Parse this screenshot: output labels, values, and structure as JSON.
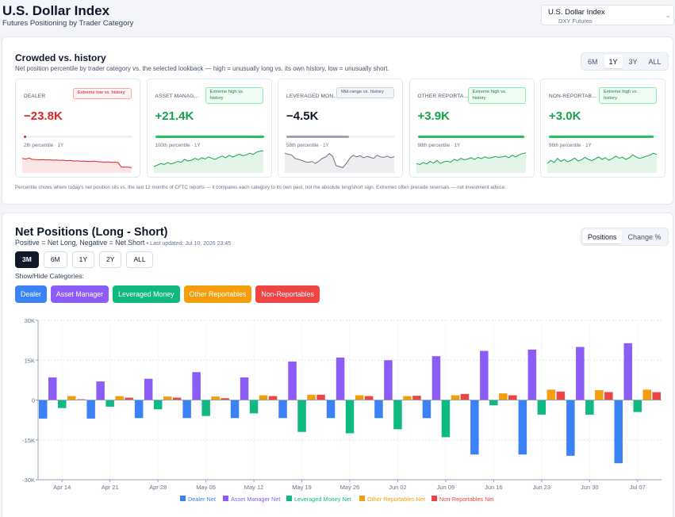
{
  "header": {
    "title": "U.S. Dollar Index",
    "subtitle": "Futures Positioning by Trader Category",
    "market_select": {
      "value": "U.S. Dollar Index",
      "sub": "DXY Futures"
    }
  },
  "crowded": {
    "title": "Crowded vs. history",
    "description": "Net position percentile by trader category vs. the selected lookback — high = unusually long vs. its own history, low = unusually short.",
    "lookbacks": [
      "6M",
      "1Y",
      "3Y",
      "ALL"
    ],
    "active_lookback": "1Y",
    "footnote": "Percentile shows where today's net position sits vs. the last 12 months of CFTC reports — it compares each category to its own past, not the absolute long/short sign. Extremes often precede reversals — not investment advice.",
    "cards": [
      {
        "name": "DEALER",
        "badge": "Extreme low vs. history",
        "badge_type": "low",
        "value": "−23.8K",
        "percentile": 2,
        "percentile_label": "2th percentile · 1Y",
        "color": "#dc2626",
        "spark": [
          0.55,
          0.52,
          0.56,
          0.5,
          0.49,
          0.48,
          0.49,
          0.47,
          0.48,
          0.46,
          0.47,
          0.45,
          0.46,
          0.44,
          0.45,
          0.42,
          0.43,
          0.41,
          0.42,
          0.4,
          0.4,
          0.41,
          0.39,
          0.38,
          0.37,
          0.38,
          0.36,
          0.36,
          0.35,
          0.12,
          0.13,
          0.12,
          0.1
        ]
      },
      {
        "name": "ASSET MANAG...",
        "badge": "Extreme high vs. history",
        "badge_type": "high",
        "value": "+21.4K",
        "percentile": 100,
        "percentile_label": "100th percentile · 1Y",
        "color": "#16a34a",
        "spark": [
          0.15,
          0.22,
          0.3,
          0.25,
          0.35,
          0.28,
          0.33,
          0.4,
          0.36,
          0.5,
          0.42,
          0.46,
          0.55,
          0.48,
          0.58,
          0.52,
          0.62,
          0.55,
          0.5,
          0.6,
          0.66,
          0.58,
          0.7,
          0.62,
          0.68,
          0.75,
          0.68,
          0.72,
          0.8,
          0.74,
          0.85,
          0.9,
          0.92
        ]
      },
      {
        "name": "LEVERAGED MON...",
        "badge": "Mid-range vs. history",
        "badge_type": "mid",
        "value": "−4.5K",
        "percentile": 58,
        "percentile_label": "58th percentile · 1Y",
        "color": "#6b7280",
        "spark": [
          0.8,
          0.75,
          0.72,
          0.55,
          0.5,
          0.45,
          0.38,
          0.36,
          0.4,
          0.3,
          0.42,
          0.55,
          0.62,
          0.78,
          0.65,
          0.2,
          0.15,
          0.1,
          0.3,
          0.55,
          0.7,
          0.62,
          0.68,
          0.58,
          0.65,
          0.6,
          0.55,
          0.7,
          0.62,
          0.6,
          0.66,
          0.58,
          0.64
        ]
      },
      {
        "name": "OTHER REPORTA...",
        "badge": "Extreme high vs. history",
        "badge_type": "high",
        "value": "+3.9K",
        "percentile": 98,
        "percentile_label": "98th percentile · 1Y",
        "color": "#16a34a",
        "spark": [
          0.3,
          0.25,
          0.35,
          0.28,
          0.4,
          0.32,
          0.45,
          0.3,
          0.38,
          0.42,
          0.36,
          0.5,
          0.44,
          0.55,
          0.48,
          0.52,
          0.58,
          0.5,
          0.6,
          0.54,
          0.62,
          0.56,
          0.58,
          0.64,
          0.6,
          0.62,
          0.66,
          0.58,
          0.7,
          0.62,
          0.72,
          0.78,
          0.82
        ]
      },
      {
        "name": "NON-REPORTAB...",
        "badge": "Extreme high vs. history",
        "badge_type": "high",
        "value": "+3.0K",
        "percentile": 96,
        "percentile_label": "96th percentile · 1Y",
        "color": "#16a34a",
        "spark": [
          0.3,
          0.45,
          0.35,
          0.55,
          0.4,
          0.5,
          0.38,
          0.46,
          0.56,
          0.42,
          0.48,
          0.6,
          0.5,
          0.44,
          0.52,
          0.62,
          0.5,
          0.58,
          0.46,
          0.54,
          0.66,
          0.56,
          0.6,
          0.5,
          0.58,
          0.72,
          0.62,
          0.55,
          0.6,
          0.66,
          0.7,
          0.8,
          0.74
        ]
      }
    ]
  },
  "net_positions": {
    "title": "Net Positions (Long - Short)",
    "subtitle": "Positive = Net Long, Negative = Net Short",
    "last_updated": "• Last updated: Jul 10, 2026 23:45",
    "view_tabs": [
      "Positions",
      "Change %"
    ],
    "active_view": "Positions",
    "ranges": [
      "3M",
      "6M",
      "1Y",
      "2Y",
      "ALL"
    ],
    "active_range": "3M",
    "show_hide_label": "Show/Hide Categories:",
    "categories": [
      {
        "label": "Dealer",
        "color": "#3b82f6"
      },
      {
        "label": "Asset Manager",
        "color": "#8b5cf6"
      },
      {
        "label": "Leveraged Money",
        "color": "#10b981"
      },
      {
        "label": "Other Reportables",
        "color": "#f59e0b"
      },
      {
        "label": "Non-Reportables",
        "color": "#ef4444"
      }
    ]
  },
  "chart_data": {
    "type": "bar",
    "title": "",
    "xlabel": "",
    "ylabel": "",
    "ylim": [
      -30000,
      30000
    ],
    "yticks": [
      30000,
      15000,
      0,
      -15000,
      -30000
    ],
    "ytick_labels": [
      "30K",
      "15K",
      "0",
      "-15K",
      "-30K"
    ],
    "categories": [
      "Apr 14",
      "Apr 21",
      "Apr 28",
      "May 05",
      "May 12",
      "May 19",
      "May 26",
      "Jun 02",
      "Jun 09",
      "Jun 16",
      "Jun 23",
      "Jun 30",
      "Jul 07"
    ],
    "grid": true,
    "legend_position": "bottom",
    "series": [
      {
        "name": "Dealer Net",
        "color": "#3b82f6",
        "values": [
          -7000,
          -7000,
          -6800,
          -6800,
          -6800,
          -6800,
          -6800,
          -6800,
          -6800,
          -20500,
          -20500,
          -21000,
          -23800
        ]
      },
      {
        "name": "Asset Manager Net",
        "color": "#8b5cf6",
        "values": [
          8500,
          7000,
          8000,
          10500,
          8500,
          14500,
          16000,
          15000,
          16500,
          18500,
          19000,
          20000,
          21400
        ]
      },
      {
        "name": "Leveraged Money Net",
        "color": "#10b981",
        "values": [
          -3000,
          -2500,
          -3500,
          -6000,
          -5000,
          -12000,
          -12500,
          -11000,
          -14000,
          -2000,
          -5500,
          -5500,
          -4500
        ]
      },
      {
        "name": "Other Reportables Net",
        "color": "#f59e0b",
        "values": [
          1500,
          1500,
          1300,
          1300,
          1800,
          2000,
          1800,
          1500,
          1800,
          2500,
          3900,
          3700,
          3900
        ]
      },
      {
        "name": "Non-Reportables Net",
        "color": "#ef4444",
        "values": [
          300,
          900,
          900,
          700,
          1500,
          2000,
          1500,
          1600,
          2300,
          1800,
          3200,
          3000,
          3000
        ]
      }
    ]
  }
}
